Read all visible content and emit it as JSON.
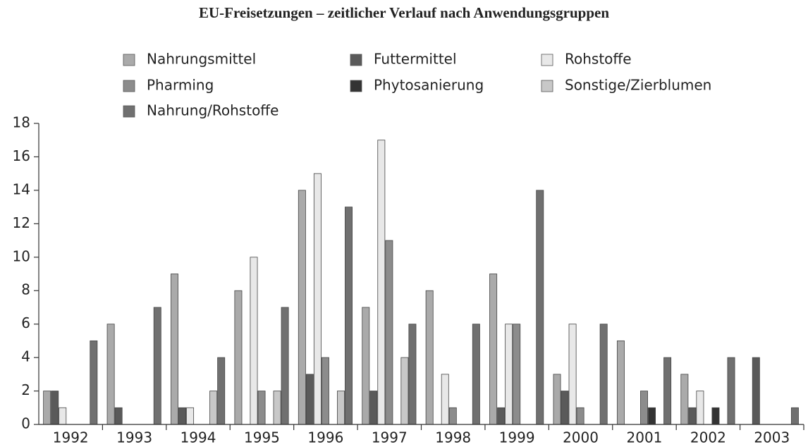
{
  "chart_data": {
    "type": "bar",
    "title": "EU-Freisetzungen – zeitlicher Verlauf nach Anwendungsgruppen",
    "categories": [
      "1992",
      "1993",
      "1994",
      "1995",
      "1996",
      "1997",
      "1998",
      "1999",
      "2000",
      "2001",
      "2002",
      "2003"
    ],
    "series": [
      {
        "name": "Nahrungsmittel",
        "color": "#aaaaaa",
        "values": [
          2,
          6,
          9,
          8,
          14,
          7,
          8,
          9,
          3,
          5,
          3,
          0
        ]
      },
      {
        "name": "Futtermittel",
        "color": "#5a5a5a",
        "values": [
          2,
          1,
          1,
          0,
          3,
          2,
          0,
          1,
          2,
          0,
          1,
          4
        ]
      },
      {
        "name": "Rohstoffe",
        "color": "#e8e8e8",
        "values": [
          1,
          0,
          1,
          10,
          15,
          17,
          3,
          6,
          6,
          0,
          2,
          0
        ]
      },
      {
        "name": "Pharming",
        "color": "#8c8c8c",
        "values": [
          0,
          0,
          0,
          2,
          4,
          11,
          1,
          6,
          1,
          2,
          0,
          0
        ]
      },
      {
        "name": "Phytosanierung",
        "color": "#333333",
        "values": [
          0,
          0,
          0,
          0,
          0,
          0,
          0,
          0,
          0,
          1,
          1,
          0
        ]
      },
      {
        "name": "Sonstige/Zierblumen",
        "color": "#c8c8c8",
        "values": [
          0,
          0,
          2,
          2,
          2,
          4,
          0,
          0,
          0,
          0,
          0,
          0
        ]
      },
      {
        "name": "Nahrung/Rohstoffe",
        "color": "#707070",
        "values": [
          5,
          7,
          4,
          7,
          13,
          6,
          6,
          14,
          6,
          4,
          4,
          1
        ]
      }
    ],
    "ylim": [
      0,
      18
    ],
    "yticks": [
      0,
      2,
      4,
      6,
      8,
      10,
      12,
      14,
      16,
      18
    ]
  }
}
